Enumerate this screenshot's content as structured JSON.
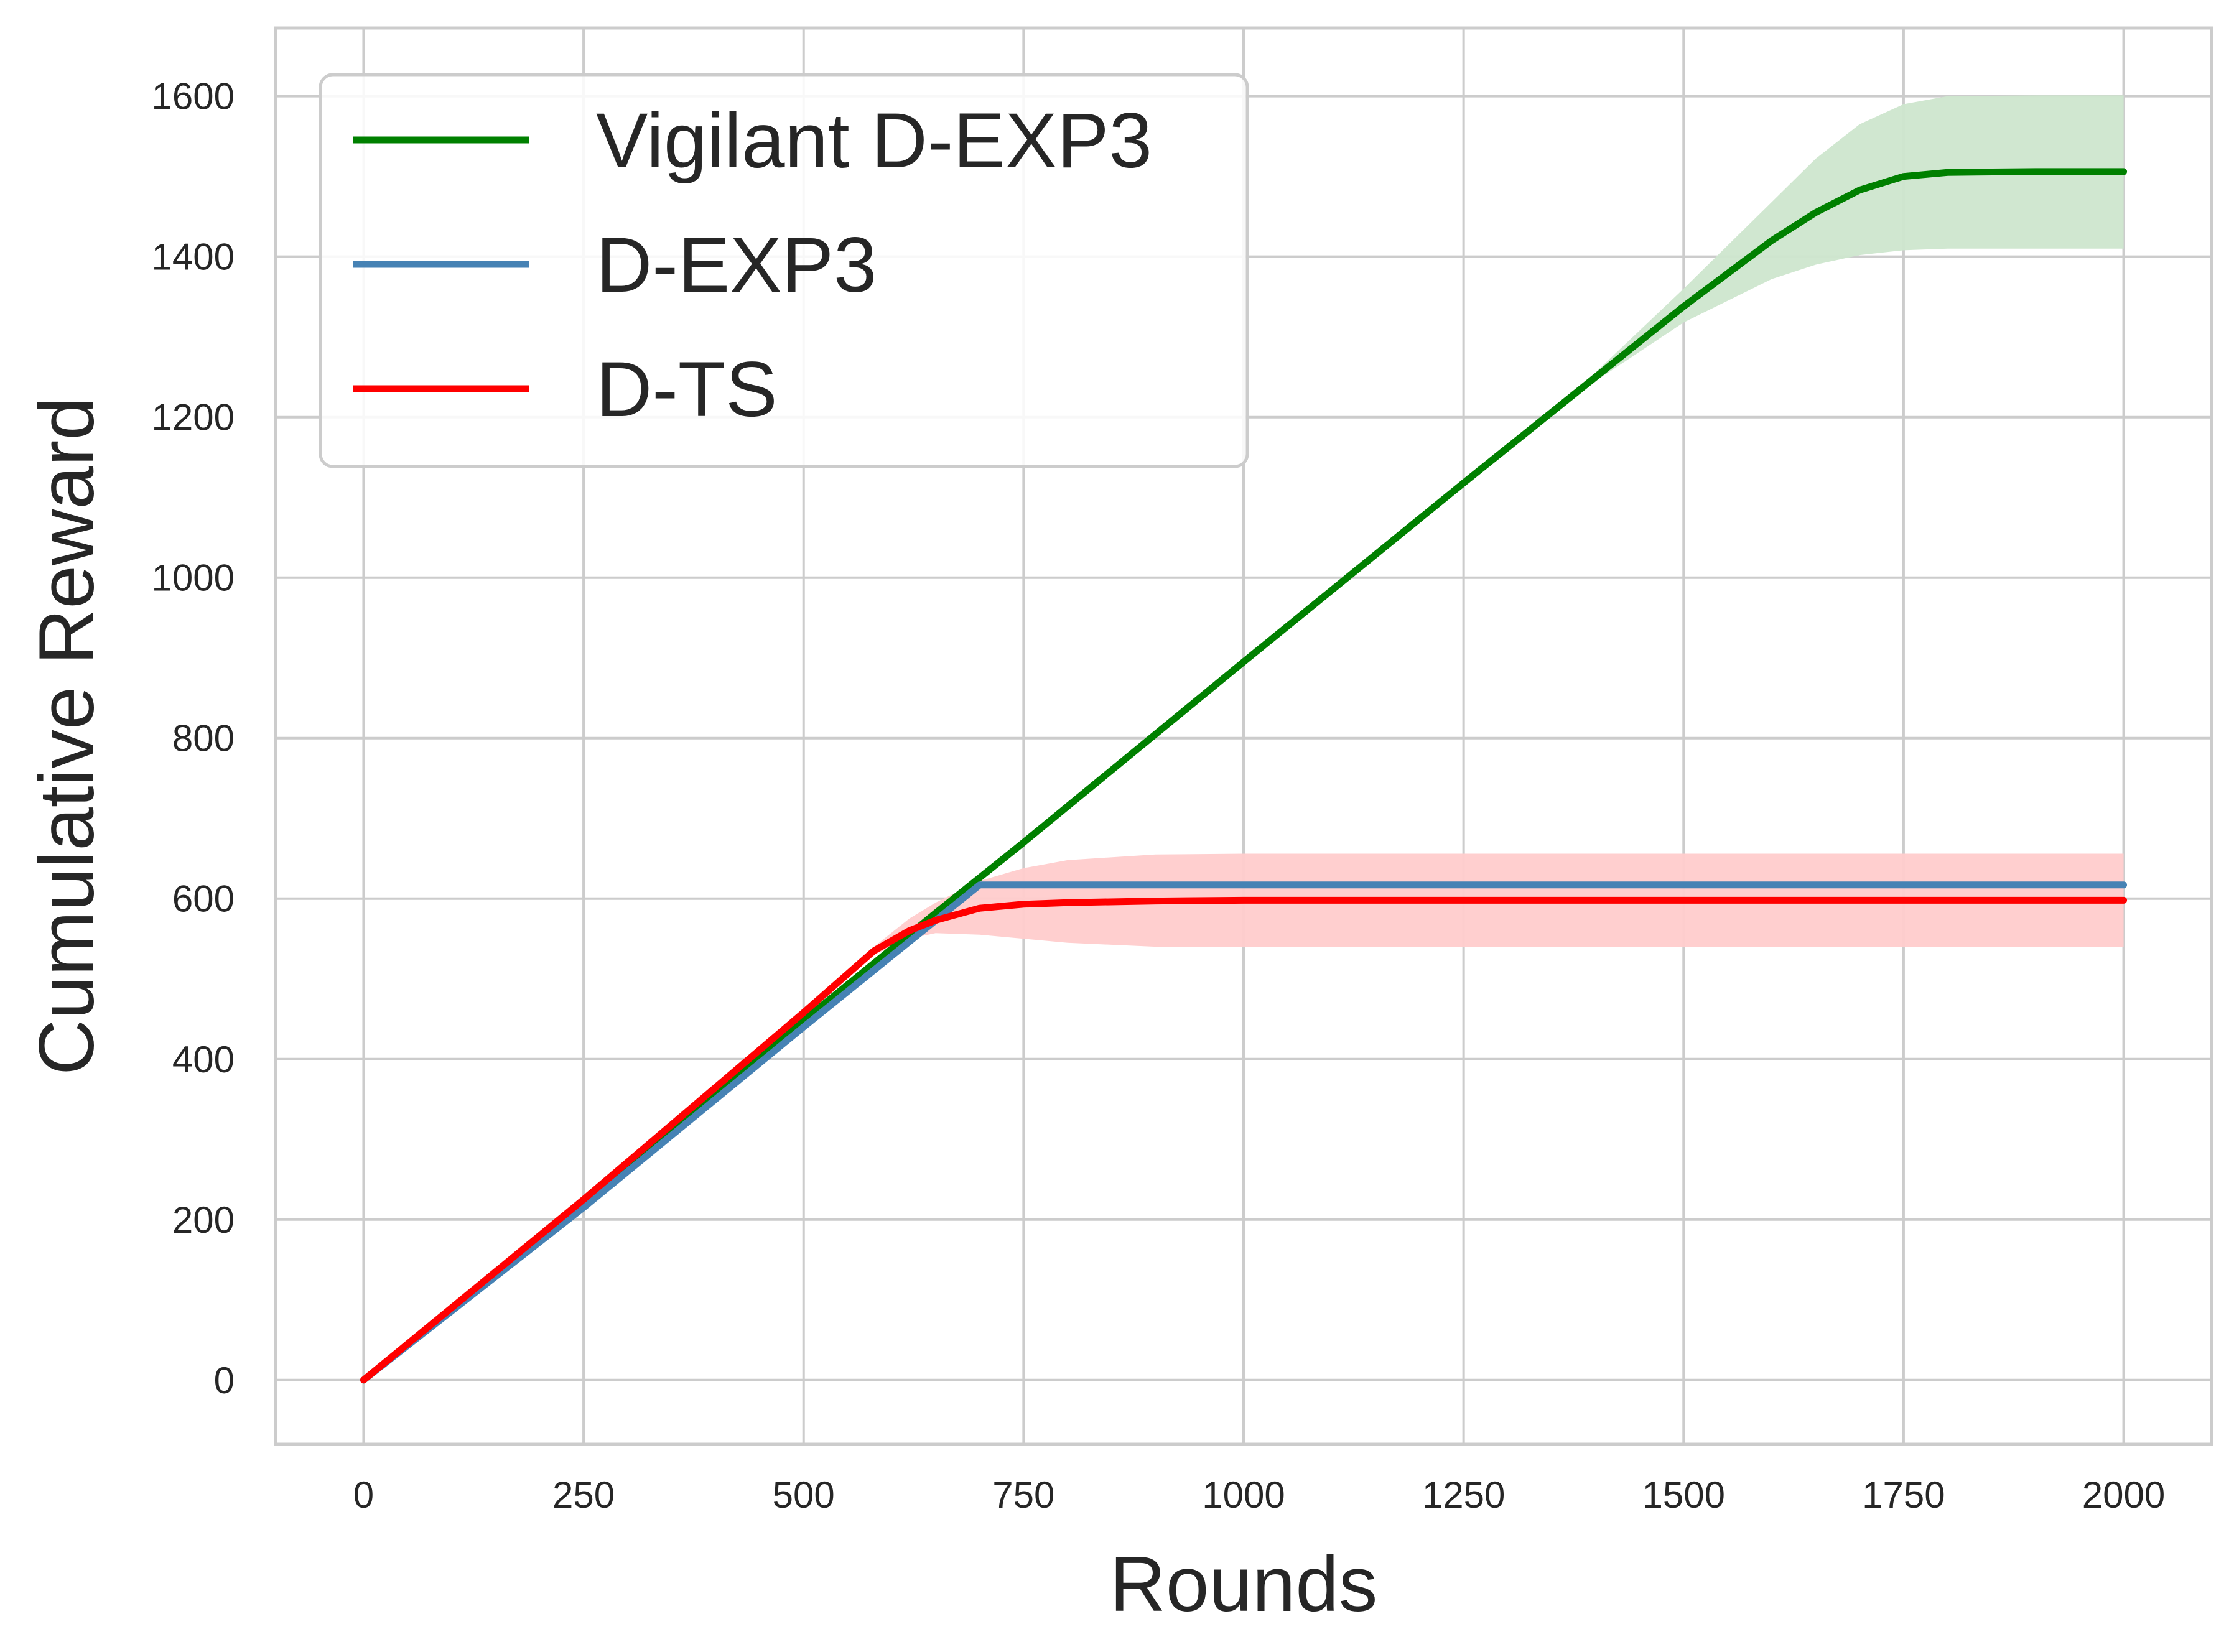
{
  "chart_data": {
    "type": "line",
    "xlabel": "Rounds",
    "ylabel": "Cumulative Reward",
    "xlim": [
      -100,
      2100
    ],
    "ylim": [
      -80,
      1685
    ],
    "xticks": [
      0,
      250,
      500,
      750,
      1000,
      1250,
      1500,
      1750,
      2000
    ],
    "xtick_labels": [
      "0",
      "250",
      "500",
      "750",
      "1000",
      "1250",
      "1500",
      "1750",
      "2000"
    ],
    "yticks": [
      0,
      200,
      400,
      600,
      800,
      1000,
      1200,
      1400,
      1600
    ],
    "ytick_labels": [
      "0",
      "200",
      "400",
      "600",
      "800",
      "1000",
      "1200",
      "1400",
      "1600"
    ],
    "grid": true,
    "legend_position": "top-left",
    "series": [
      {
        "name": "Vigilant D-EXP3",
        "color": "#008000",
        "band_color": "#cde6cd",
        "x": [
          0,
          250,
          500,
          650,
          750,
          1000,
          1250,
          1400,
          1500,
          1600,
          1650,
          1700,
          1750,
          1800,
          1900,
          2000
        ],
        "y": [
          0,
          222,
          448,
          582,
          670,
          895,
          1118,
          1250,
          1338,
          1420,
          1455,
          1483,
          1500,
          1505,
          1506,
          1506
        ],
        "low": [
          0,
          222,
          448,
          582,
          670,
          895,
          1118,
          1245,
          1318,
          1372,
          1390,
          1402,
          1408,
          1410,
          1410,
          1410
        ],
        "high": [
          0,
          222,
          448,
          582,
          670,
          895,
          1118,
          1256,
          1360,
          1468,
          1522,
          1565,
          1590,
          1600,
          1601,
          1601
        ]
      },
      {
        "name": "D-EXP3",
        "color": "#4682b4",
        "x": [
          0,
          250,
          500,
          700,
          750,
          1000,
          1250,
          1500,
          1750,
          2000
        ],
        "y": [
          0,
          215,
          440,
          617,
          617,
          617,
          617,
          617,
          617,
          617
        ]
      },
      {
        "name": "D-TS",
        "color": "#ff0000",
        "band_color": "#ffcccc",
        "x": [
          0,
          250,
          500,
          580,
          620,
          650,
          700,
          750,
          800,
          900,
          1000,
          1250,
          1500,
          1750,
          2000
        ],
        "y": [
          0,
          225,
          458,
          535,
          560,
          573,
          588,
          593,
          595,
          597,
          598,
          598,
          598,
          598,
          598
        ],
        "low": [
          0,
          225,
          458,
          530,
          550,
          557,
          555,
          550,
          545,
          540,
          540,
          540,
          540,
          540,
          540
        ],
        "high": [
          0,
          225,
          458,
          540,
          575,
          595,
          622,
          638,
          648,
          655,
          656,
          656,
          656,
          656,
          656
        ]
      }
    ]
  }
}
